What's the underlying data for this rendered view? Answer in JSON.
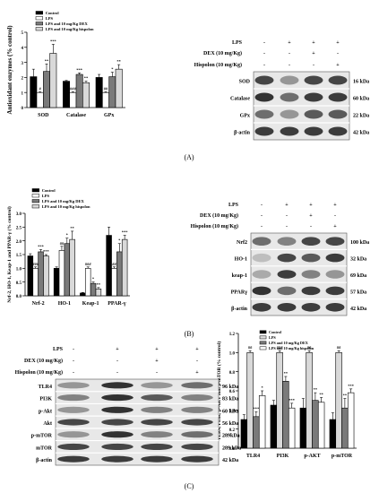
{
  "panel_labels": [
    "(A)",
    "(B)",
    "(C)"
  ],
  "treatment_labels": {
    "lps": "LPS",
    "dex": "DEX (10 mg/Kg)",
    "hisp": "Hispolon (10 mg/Kg)"
  },
  "signs": {
    "plus": "+",
    "minus": "-"
  },
  "lane_signs": {
    "lps": [
      "-",
      "+",
      "+",
      "+"
    ],
    "dex": [
      "-",
      "-",
      "+",
      "-"
    ],
    "hisp": [
      "-",
      "-",
      "-",
      "+"
    ]
  },
  "blots": {
    "A": {
      "rows": [
        {
          "name": "SOD",
          "kda": "16 kDa"
        },
        {
          "name": "Catalase",
          "kda": "60 kDa"
        },
        {
          "name": "GPx",
          "kda": "22 kDa"
        },
        {
          "name": "β-actin",
          "kda": "42 kDa"
        }
      ]
    },
    "B": {
      "rows": [
        {
          "name": "Nrf2",
          "kda": "100 kDa"
        },
        {
          "name": "HO-1",
          "kda": "32 kDa"
        },
        {
          "name": "keap-1",
          "kda": "69 kDa"
        },
        {
          "name": "PPARγ",
          "kda": "57 kDa"
        },
        {
          "name": "β-actin",
          "kda": "42 kDa"
        }
      ]
    },
    "C": {
      "rows": [
        {
          "name": "TLR4",
          "kda": "96 kDa"
        },
        {
          "name": "PI3K",
          "kda": "83 kDa"
        },
        {
          "name": "p-Akt",
          "kda": "60 kDa"
        },
        {
          "name": "Akt",
          "kda": "56 kDa"
        },
        {
          "name": "p-mTOR",
          "kda": "289kDa"
        },
        {
          "name": "mTOR",
          "kda": "289 kDa"
        },
        {
          "name": "β-actin",
          "kda": "42 kDa"
        }
      ]
    }
  },
  "chart_data": [
    {
      "type": "bar",
      "panel": "A",
      "ylabel": "Antioxidant enzymes (% control)",
      "ylim": [
        0,
        5
      ],
      "yticks": [
        "0",
        "1",
        "2",
        "3",
        "4",
        "5"
      ],
      "categories": [
        "SOD",
        "Catalase",
        "GPx"
      ],
      "legend": [
        "Control",
        "LPS",
        "LPS and 10 mg/Kg DEX",
        "LPS and 10 mg/Kg hispolon"
      ],
      "colors": [
        "#000000",
        "#ffffff",
        "#7a7a7a",
        "#d9d9d9"
      ],
      "series": [
        {
          "name": "Control",
          "values": [
            2.05,
            1.75,
            2.0
          ],
          "errors": [
            0.5,
            0.05,
            0.2
          ],
          "annotations": [
            "",
            "",
            ""
          ]
        },
        {
          "name": "LPS",
          "values": [
            1.0,
            1.0,
            1.0
          ],
          "errors": [
            0.05,
            0.05,
            0.05
          ],
          "annotations": [
            "#",
            "###",
            "##"
          ]
        },
        {
          "name": "LPS and 10 mg/Kg DEX",
          "values": [
            2.4,
            2.2,
            2.05
          ],
          "errors": [
            0.5,
            0.1,
            0.3
          ],
          "annotations": [
            "**",
            "***",
            "*"
          ]
        },
        {
          "name": "LPS and 10 mg/Kg hispolon",
          "values": [
            3.6,
            1.65,
            2.55
          ],
          "errors": [
            0.6,
            0.1,
            0.3
          ],
          "annotations": [
            "***",
            "**",
            "**"
          ]
        }
      ]
    },
    {
      "type": "bar",
      "panel": "B",
      "ylabel": "Nrf-2, HO-1, Keap-1 and PPAR-γ (% control)",
      "ylim": [
        0,
        3
      ],
      "yticks": [
        "0.0",
        "0.5",
        "1.0",
        "1.5",
        "2.0",
        "2.5",
        "3.0"
      ],
      "categories": [
        "Nrf-2",
        "HO-1",
        "Keap-1",
        "PPAR-γ"
      ],
      "legend": [
        "Control",
        "LPS",
        "LPS and 10 mg/Kg DEX",
        "LPS and 10 mg/Kg hispolon"
      ],
      "colors": [
        "#000000",
        "#ffffff",
        "#7a7a7a",
        "#d9d9d9"
      ],
      "series": [
        {
          "name": "Control",
          "values": [
            1.45,
            1.0,
            0.1,
            2.2
          ],
          "errors": [
            0.08,
            0.05,
            0.02,
            0.3
          ],
          "annotations": [
            "",
            "",
            "",
            ""
          ]
        },
        {
          "name": "LPS",
          "values": [
            1.0,
            1.65,
            1.0,
            1.0
          ],
          "errors": [
            0.05,
            0.15,
            0.05,
            0.05
          ],
          "annotations": [
            "###",
            "##",
            "###",
            "##"
          ]
        },
        {
          "name": "LPS and 10 mg/Kg DEX",
          "values": [
            1.6,
            1.9,
            0.45,
            1.6
          ],
          "errors": [
            0.08,
            0.2,
            0.05,
            0.3
          ],
          "annotations": [
            "***",
            "*",
            "*",
            "*"
          ]
        },
        {
          "name": "LPS and 10 mg/Kg hispolon",
          "values": [
            1.45,
            2.05,
            0.25,
            2.05
          ],
          "errors": [
            0.05,
            0.3,
            0.05,
            0.15
          ],
          "annotations": [
            "***",
            "**",
            "**",
            "***"
          ]
        }
      ]
    },
    {
      "type": "bar",
      "panel": "C",
      "ylabel": "TLR4, PI3K, p-AKT and p-mTOR (% control)",
      "ylim": [
        0,
        1.2
      ],
      "yticks": [
        "0.0",
        "0.2",
        "0.4",
        "0.6",
        "0.8",
        "1.0",
        "1.2"
      ],
      "categories": [
        "TLR4",
        "PI3K",
        "p-AKT",
        "p-mTOR"
      ],
      "legend": [
        "Control",
        "LPS",
        "LPS and 10 mg/Kg DEX",
        "LPS and 10 mg/Kg hispolon"
      ],
      "colors": [
        "#000000",
        "#d9d9d9",
        "#7a7a7a",
        "#ffffff"
      ],
      "series": [
        {
          "name": "Control",
          "values": [
            0.3,
            0.45,
            0.42,
            0.3
          ],
          "errors": [
            0.05,
            0.05,
            0.1,
            0.07
          ],
          "annotations": [
            "",
            "",
            "",
            ""
          ]
        },
        {
          "name": "LPS",
          "values": [
            1.0,
            1.0,
            1.0,
            1.0
          ],
          "errors": [
            0.02,
            0.02,
            0.02,
            0.02
          ],
          "annotations": [
            "##",
            "###",
            "##",
            "##"
          ]
        },
        {
          "name": "LPS and 10 mg/Kg DEX",
          "values": [
            0.33,
            0.7,
            0.5,
            0.42
          ],
          "errors": [
            0.05,
            0.05,
            0.08,
            0.1
          ],
          "annotations": [
            "***",
            "**",
            "**",
            "**"
          ]
        },
        {
          "name": "LPS and 10 mg/Kg hispolon",
          "values": [
            0.55,
            0.42,
            0.48,
            0.58
          ],
          "errors": [
            0.05,
            0.05,
            0.05,
            0.04
          ],
          "annotations": [
            "*",
            "***",
            "**",
            "***"
          ]
        }
      ]
    }
  ]
}
